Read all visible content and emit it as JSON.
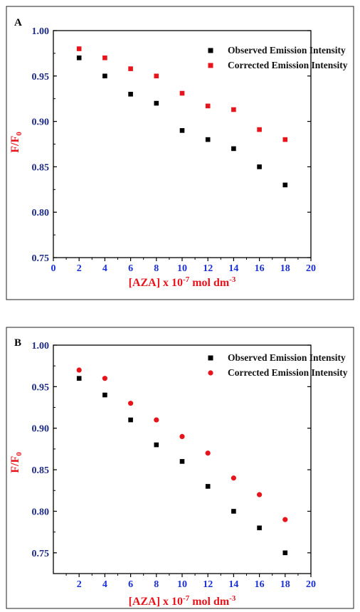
{
  "colors": {
    "observed": "#000000",
    "corrected": "#e8141b",
    "y_tick_text": "#1d2b86",
    "x_tick_text": "#1a2fd8",
    "axis_label": "#e8141b",
    "frame": "#222222"
  },
  "chart_data": [
    {
      "type": "scatter",
      "panel_label": "A",
      "xlabel": {
        "main": "[AZA] x 10",
        "sup": "-7",
        "tail": " mol dm",
        "tail_sup": "-3"
      },
      "ylabel": {
        "main": "F/F",
        "sub": "0"
      },
      "xlim": [
        0,
        20
      ],
      "ylim": [
        0.75,
        1.0
      ],
      "x_ticks": [
        "0",
        "2",
        "4",
        "6",
        "8",
        "10",
        "12",
        "14",
        "16",
        "18",
        "20"
      ],
      "y_ticks": [
        "0.75",
        "0.80",
        "0.85",
        "0.90",
        "0.95",
        "1.00"
      ],
      "legend_position": "top-right",
      "series": [
        {
          "name": "Observed Emission Intensity",
          "marker": "square",
          "color": "#000000",
          "x": [
            2,
            4,
            6,
            8,
            10,
            12,
            14,
            16,
            18
          ],
          "y": [
            0.97,
            0.95,
            0.93,
            0.92,
            0.89,
            0.88,
            0.87,
            0.85,
            0.83
          ]
        },
        {
          "name": "Corrected Emission Intensity",
          "marker": "square",
          "color": "#e8141b",
          "x": [
            2,
            4,
            6,
            8,
            10,
            12,
            14,
            16,
            18
          ],
          "y": [
            0.98,
            0.97,
            0.958,
            0.95,
            0.931,
            0.917,
            0.913,
            0.891,
            0.88
          ]
        }
      ]
    },
    {
      "type": "scatter",
      "panel_label": "B",
      "xlabel": {
        "main": "[AZA] x 10",
        "sup": "-7",
        "tail": " mol dm",
        "tail_sup": "-3"
      },
      "ylabel": {
        "main": "F/F",
        "sub": "0"
      },
      "xlim": [
        0,
        20
      ],
      "ylim": [
        0.725,
        1.0
      ],
      "x_ticks": [
        "2",
        "4",
        "6",
        "8",
        "10",
        "12",
        "14",
        "16",
        "18",
        "20"
      ],
      "y_ticks": [
        "0.75",
        "0.80",
        "0.85",
        "0.90",
        "0.95",
        "1.00"
      ],
      "legend_position": "top-right",
      "series": [
        {
          "name": "Observed Emission Intensity",
          "marker": "square",
          "color": "#000000",
          "x": [
            2,
            4,
            6,
            8,
            10,
            12,
            14,
            16,
            18
          ],
          "y": [
            0.96,
            0.94,
            0.91,
            0.88,
            0.86,
            0.83,
            0.8,
            0.78,
            0.75
          ]
        },
        {
          "name": "Corrected Emission Intensity",
          "marker": "circle",
          "color": "#e8141b",
          "x": [
            2,
            4,
            6,
            8,
            10,
            12,
            14,
            16,
            18
          ],
          "y": [
            0.97,
            0.96,
            0.93,
            0.91,
            0.89,
            0.87,
            0.84,
            0.82,
            0.79
          ]
        }
      ]
    }
  ]
}
